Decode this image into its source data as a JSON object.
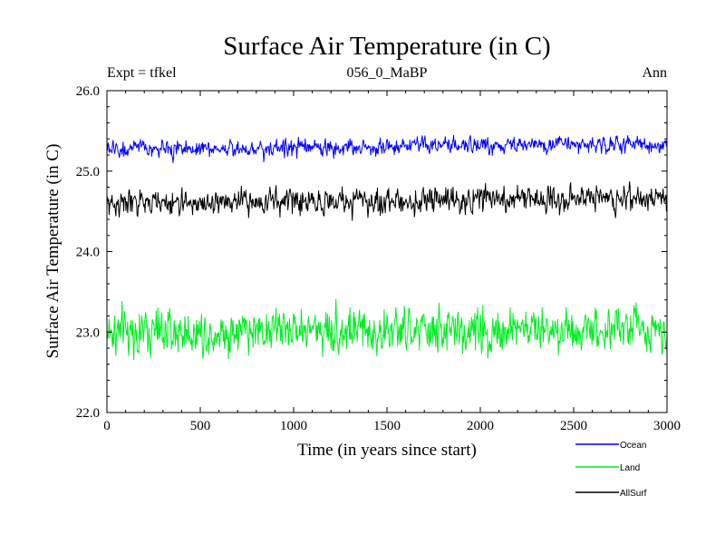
{
  "chart_data": {
    "type": "line",
    "title": "Surface Air Temperature (in C)",
    "subtitle": "056_0_MaBP",
    "left_label": "Expt = tfkel",
    "right_label": "Ann",
    "xlabel": "Time (in years since start)",
    "ylabel": "Surface Air Temperature (in C)",
    "xlim": [
      0,
      3000
    ],
    "ylim": [
      22.0,
      26.0
    ],
    "x_ticks": [
      0,
      500,
      1000,
      1500,
      2000,
      2500,
      3000
    ],
    "x_tick_labels": [
      "0",
      "500",
      "1000",
      "1500",
      "2000",
      "2500",
      "3000"
    ],
    "y_ticks": [
      22.0,
      23.0,
      24.0,
      25.0,
      26.0
    ],
    "y_tick_labels": [
      "22.0",
      "23.0",
      "24.0",
      "25.0",
      "26.0"
    ],
    "grid": false,
    "legend_position": "bottom-right",
    "x_step": 3,
    "series": [
      {
        "name": "Ocean",
        "color": "#0000ff",
        "mean": 25.3,
        "spread": 0.08,
        "keypoints": [
          [
            0,
            25.27
          ],
          [
            500,
            25.28
          ],
          [
            1000,
            25.29
          ],
          [
            1500,
            25.3
          ],
          [
            2000,
            25.32
          ],
          [
            2500,
            25.33
          ],
          [
            3000,
            25.33
          ]
        ]
      },
      {
        "name": "Land",
        "color": "#00ee22",
        "mean": 23.0,
        "spread": 0.22,
        "keypoints": [
          [
            0,
            23.0
          ],
          [
            500,
            23.0
          ],
          [
            1000,
            23.05
          ],
          [
            1500,
            23.0
          ],
          [
            2000,
            23.02
          ],
          [
            2500,
            23.05
          ],
          [
            3000,
            23.05
          ]
        ]
      },
      {
        "name": "AllSurf",
        "color": "#000000",
        "mean": 24.62,
        "spread": 0.12,
        "keypoints": [
          [
            0,
            24.6
          ],
          [
            500,
            24.6
          ],
          [
            1000,
            24.63
          ],
          [
            1500,
            24.62
          ],
          [
            2000,
            24.65
          ],
          [
            2500,
            24.67
          ],
          [
            3000,
            24.67
          ]
        ]
      }
    ]
  }
}
